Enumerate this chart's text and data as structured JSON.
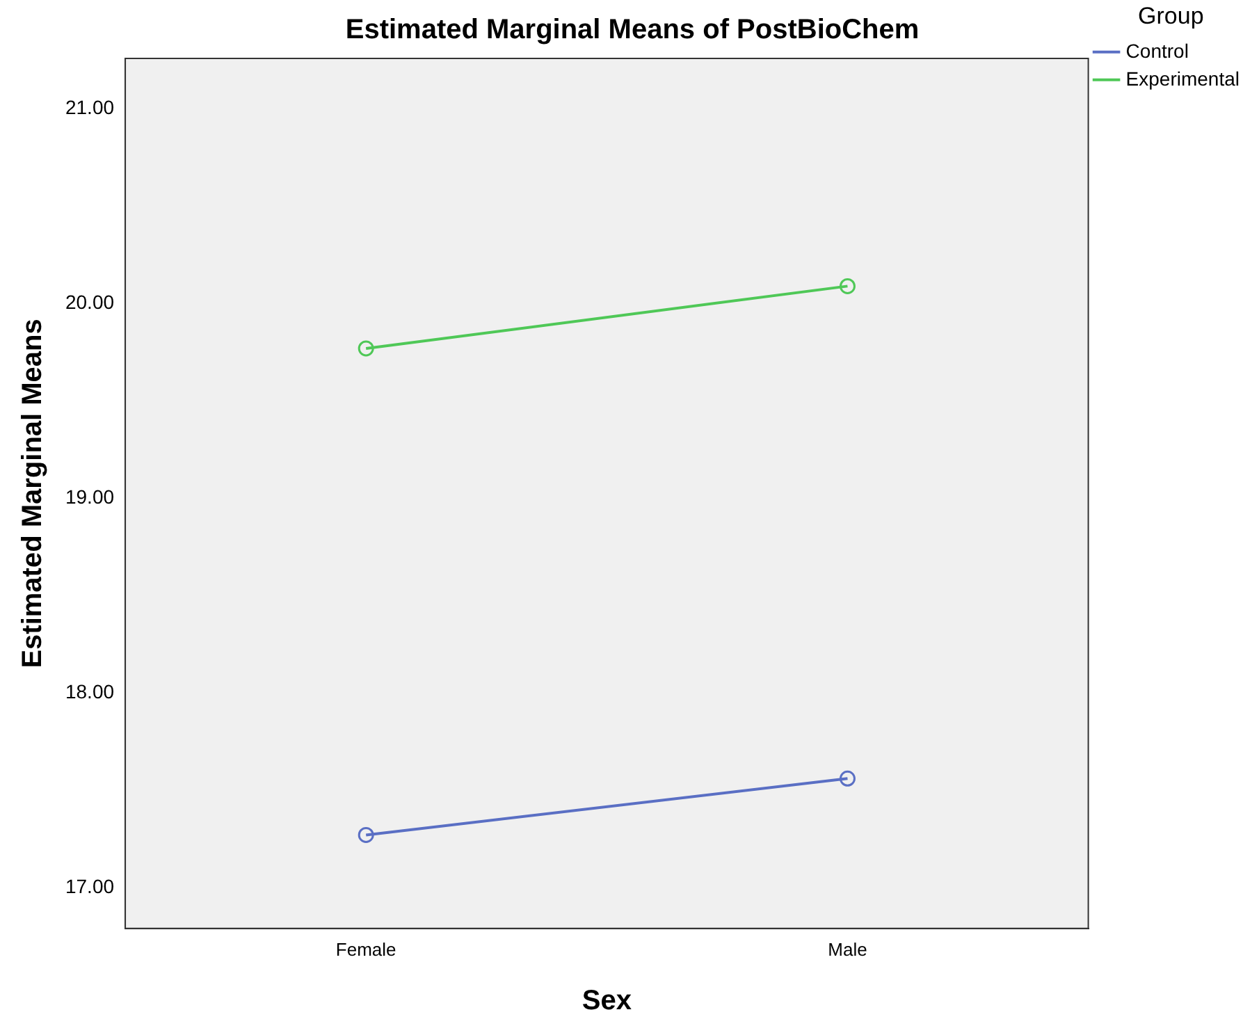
{
  "chart_data": {
    "type": "line",
    "title": "Estimated Marginal Means of PostBioChem",
    "xlabel": "Sex",
    "ylabel": "Estimated Marginal Means",
    "legend_title": "Group",
    "categories": [
      "Female",
      "Male"
    ],
    "series": [
      {
        "name": "Control",
        "color": "#5a6fc4",
        "values": [
          17.27,
          17.56
        ]
      },
      {
        "name": "Experimental",
        "color": "#4fc857",
        "values": [
          19.77,
          20.09
        ]
      }
    ],
    "ylim": [
      16.79,
      21.26
    ],
    "yticks": [
      {
        "value": 17,
        "label": "17.00"
      },
      {
        "value": 18,
        "label": "18.00"
      },
      {
        "value": 19,
        "label": "19.00"
      },
      {
        "value": 20,
        "label": "20.00"
      },
      {
        "value": 21,
        "label": "21.00"
      }
    ],
    "grid": false,
    "legend": "top right",
    "marker": "circle",
    "line_style": "solid"
  }
}
